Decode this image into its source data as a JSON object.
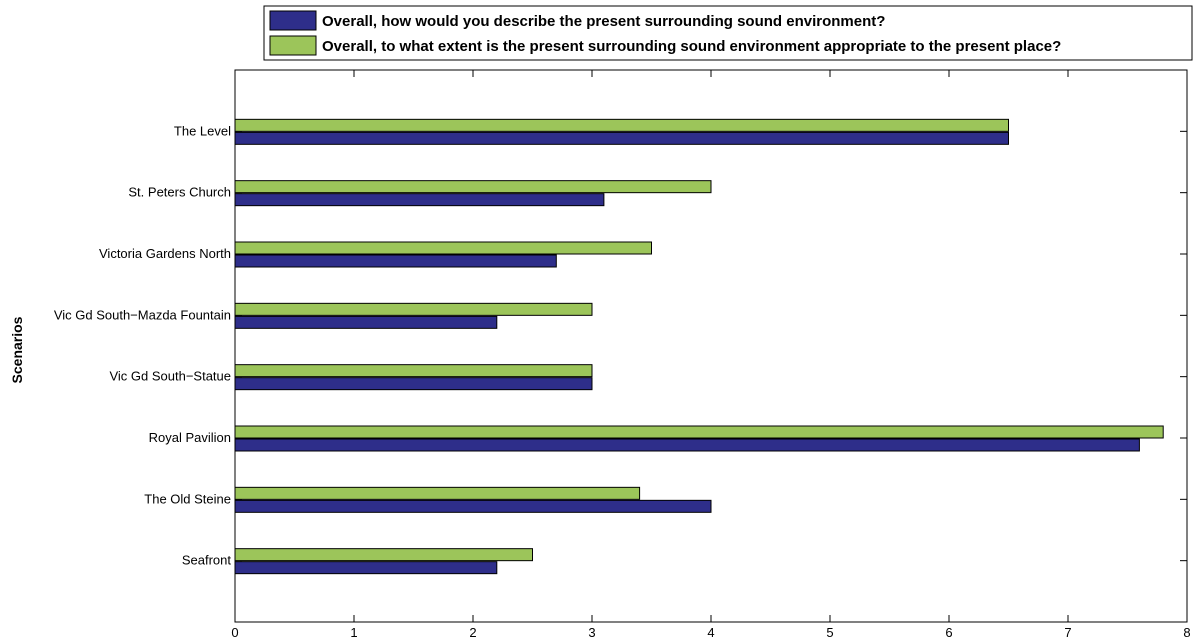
{
  "chart_data": {
    "type": "bar",
    "orientation": "horizontal",
    "ylabel": "Scenarios",
    "xlabel": "",
    "xlim": [
      0,
      8
    ],
    "xticks": [
      0,
      1,
      2,
      3,
      4,
      5,
      6,
      7,
      8
    ],
    "grid": false,
    "legend_position": "top-right",
    "categories": [
      "The Level",
      "St. Peters Church",
      "Victoria Gardens North",
      "Vic Gd South−Mazda Fountain",
      "Vic Gd South−Statue",
      "Royal Pavilion",
      "The Old Steine",
      "Seafront"
    ],
    "series": [
      {
        "name": "Overall, how would you describe the present surrounding sound environment?",
        "color": "#2e2e8a",
        "values": [
          6.5,
          3.1,
          2.7,
          2.2,
          3.0,
          7.6,
          4.0,
          2.2
        ]
      },
      {
        "name": "Overall, to what extent is the present surrounding sound environment appropriate to the present place?",
        "color": "#9cc55a",
        "values": [
          6.5,
          4.0,
          3.5,
          3.0,
          3.0,
          7.8,
          3.4,
          2.5
        ]
      }
    ]
  }
}
